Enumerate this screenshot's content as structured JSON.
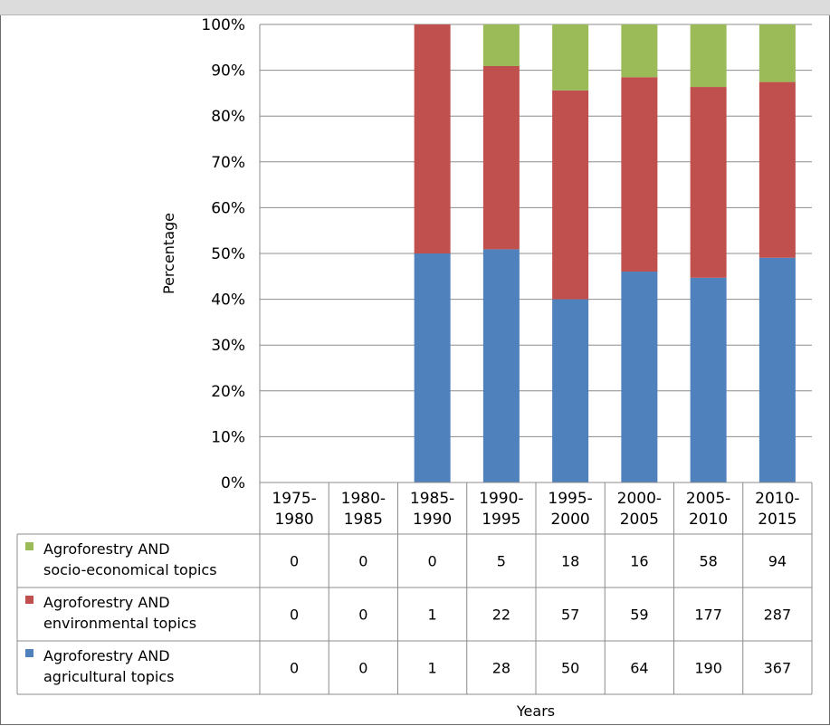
{
  "chart_data": {
    "type": "bar",
    "stacked": "percent",
    "xlabel": "Years",
    "ylabel": "Percentage",
    "ylim": [
      0,
      100
    ],
    "yticks": [
      "0%",
      "10%",
      "20%",
      "30%",
      "40%",
      "50%",
      "60%",
      "70%",
      "80%",
      "90%",
      "100%"
    ],
    "grid": true,
    "legend": "data-table-left",
    "categories": [
      [
        "1975-",
        "1980"
      ],
      [
        "1980-",
        "1985"
      ],
      [
        "1985-",
        "1990"
      ],
      [
        "1990-",
        "1995"
      ],
      [
        "1995-",
        "2000"
      ],
      [
        "2000-",
        "2005"
      ],
      [
        "2005-",
        "2010"
      ],
      [
        "2010-",
        "2015"
      ]
    ],
    "series": [
      {
        "name": [
          "Agroforestry AND",
          "socio-economical topics"
        ],
        "color": "#9bbb59",
        "values": [
          0,
          0,
          0,
          5,
          18,
          16,
          58,
          94
        ]
      },
      {
        "name": [
          "Agroforestry AND",
          "environmental topics"
        ],
        "color": "#c0504d",
        "values": [
          0,
          0,
          1,
          22,
          57,
          59,
          177,
          287
        ]
      },
      {
        "name": [
          "Agroforestry AND",
          "agricultural topics"
        ],
        "color": "#4f81bd",
        "values": [
          0,
          0,
          1,
          28,
          50,
          64,
          190,
          367
        ]
      }
    ]
  }
}
